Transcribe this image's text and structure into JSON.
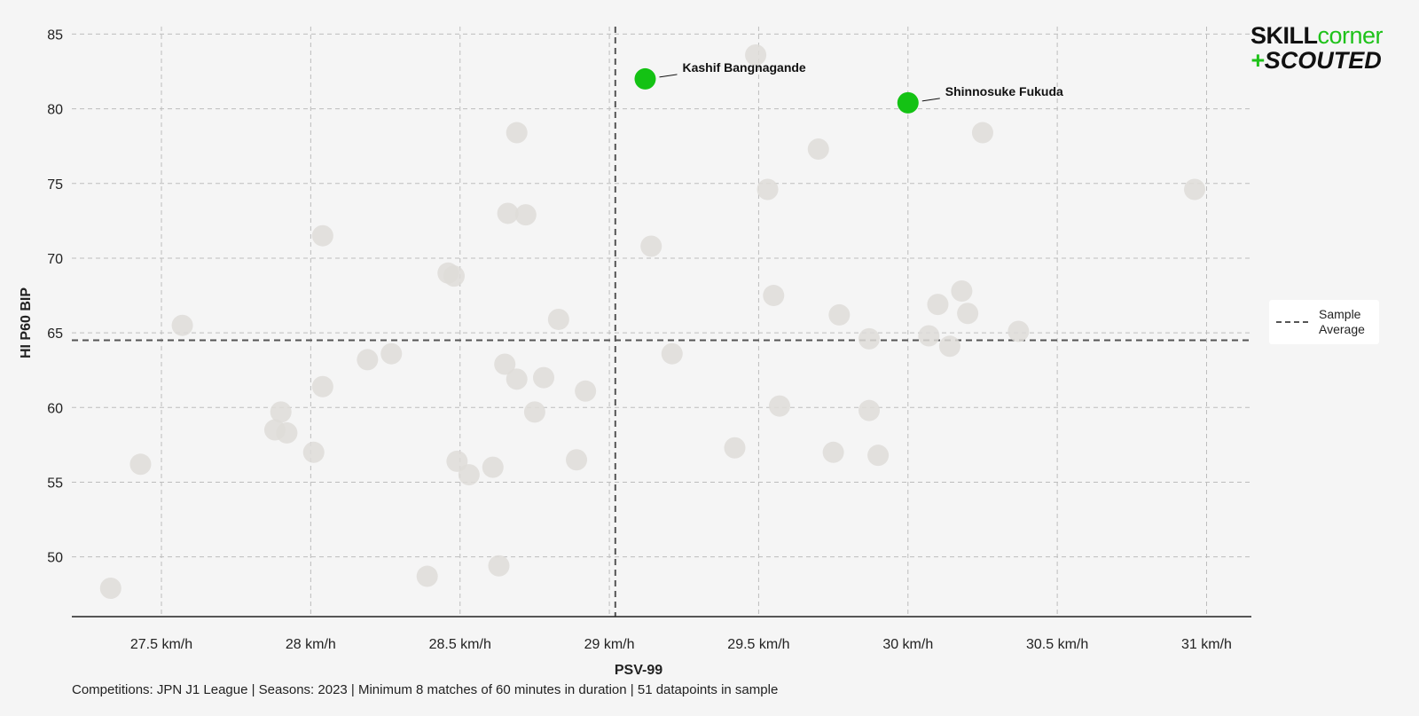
{
  "chart_data": {
    "type": "scatter",
    "xlabel": "PSV-99",
    "ylabel": "HI P60 BIP",
    "xlim": [
      27.2,
      31.15
    ],
    "ylim": [
      46,
      85.5
    ],
    "x_ticks": [
      {
        "value": 27.5,
        "label": "27.5 km/h"
      },
      {
        "value": 28.0,
        "label": "28 km/h"
      },
      {
        "value": 28.5,
        "label": "28.5 km/h"
      },
      {
        "value": 29.0,
        "label": "29 km/h"
      },
      {
        "value": 29.5,
        "label": "29.5 km/h"
      },
      {
        "value": 30.0,
        "label": "30 km/h"
      },
      {
        "value": 30.5,
        "label": "30.5 km/h"
      },
      {
        "value": 31.0,
        "label": "31 km/h"
      }
    ],
    "y_ticks": [
      {
        "value": 50,
        "label": "50"
      },
      {
        "value": 55,
        "label": "55"
      },
      {
        "value": 60,
        "label": "60"
      },
      {
        "value": 65,
        "label": "65"
      },
      {
        "value": 70,
        "label": "70"
      },
      {
        "value": 75,
        "label": "75"
      },
      {
        "value": 80,
        "label": "80"
      },
      {
        "value": 85,
        "label": "85"
      }
    ],
    "grid": true,
    "sample_average": {
      "x": 29.02,
      "y": 64.5
    },
    "legend": {
      "label": "Sample Average",
      "placement": "right"
    },
    "highlighted": [
      {
        "name": "Kashif Bangnagande",
        "x": 29.12,
        "y": 82.0
      },
      {
        "name": "Shinnosuke Fukuda",
        "x": 30.0,
        "y": 80.4
      }
    ],
    "points": [
      {
        "x": 27.33,
        "y": 47.9
      },
      {
        "x": 27.43,
        "y": 56.2
      },
      {
        "x": 27.57,
        "y": 65.5
      },
      {
        "x": 27.88,
        "y": 58.5
      },
      {
        "x": 27.9,
        "y": 59.7
      },
      {
        "x": 27.92,
        "y": 58.3
      },
      {
        "x": 28.01,
        "y": 57.0
      },
      {
        "x": 28.04,
        "y": 61.4
      },
      {
        "x": 28.04,
        "y": 71.5
      },
      {
        "x": 28.19,
        "y": 63.2
      },
      {
        "x": 28.27,
        "y": 63.6
      },
      {
        "x": 28.39,
        "y": 48.7
      },
      {
        "x": 28.46,
        "y": 69.0
      },
      {
        "x": 28.48,
        "y": 68.8
      },
      {
        "x": 28.49,
        "y": 56.4
      },
      {
        "x": 28.53,
        "y": 55.5
      },
      {
        "x": 28.61,
        "y": 56.0
      },
      {
        "x": 28.63,
        "y": 49.4
      },
      {
        "x": 28.65,
        "y": 62.9
      },
      {
        "x": 28.66,
        "y": 73.0
      },
      {
        "x": 28.69,
        "y": 78.4
      },
      {
        "x": 28.69,
        "y": 61.9
      },
      {
        "x": 28.72,
        "y": 72.9
      },
      {
        "x": 28.75,
        "y": 59.7
      },
      {
        "x": 28.78,
        "y": 62.0
      },
      {
        "x": 28.83,
        "y": 65.9
      },
      {
        "x": 28.89,
        "y": 56.5
      },
      {
        "x": 28.92,
        "y": 61.1
      },
      {
        "x": 29.14,
        "y": 70.8
      },
      {
        "x": 29.21,
        "y": 63.6
      },
      {
        "x": 29.42,
        "y": 57.3
      },
      {
        "x": 29.49,
        "y": 83.6
      },
      {
        "x": 29.53,
        "y": 74.6
      },
      {
        "x": 29.55,
        "y": 67.5
      },
      {
        "x": 29.57,
        "y": 60.1
      },
      {
        "x": 29.7,
        "y": 77.3
      },
      {
        "x": 29.75,
        "y": 57.0
      },
      {
        "x": 29.77,
        "y": 66.2
      },
      {
        "x": 29.87,
        "y": 64.6
      },
      {
        "x": 29.87,
        "y": 59.8
      },
      {
        "x": 29.9,
        "y": 56.8
      },
      {
        "x": 30.07,
        "y": 64.8
      },
      {
        "x": 30.1,
        "y": 66.9
      },
      {
        "x": 30.14,
        "y": 64.1
      },
      {
        "x": 30.18,
        "y": 67.8
      },
      {
        "x": 30.2,
        "y": 66.3
      },
      {
        "x": 30.25,
        "y": 78.4
      },
      {
        "x": 30.37,
        "y": 65.1
      },
      {
        "x": 30.96,
        "y": 74.6
      }
    ]
  },
  "logo": {
    "line1_a": "SKILL",
    "line1_b": "corner",
    "line2_a": "+",
    "line2_b": "SCOUTED"
  },
  "footer_text": "Competitions: JPN J1 League | Seasons: 2023 | Minimum 8 matches of 60 minutes in duration | 51 datapoints in sample",
  "colors": {
    "highlight": "#14c214",
    "point": "#dedcd8",
    "grid": "#bdbdbd",
    "average_line": "#555555",
    "axis": "#222222",
    "background": "#f5f5f5"
  }
}
